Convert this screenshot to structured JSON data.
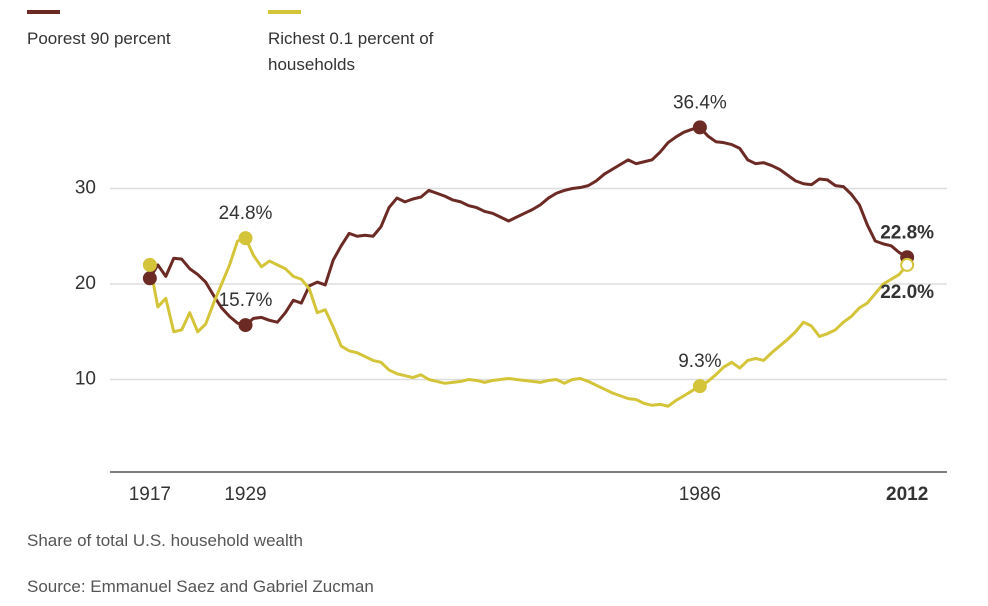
{
  "chart_data": {
    "type": "line",
    "axis_label": "Share of total U.S. household wealth",
    "source": "Source: Emmanuel Saez and Gabriel Zucman",
    "x": [
      1917,
      1918,
      1919,
      1920,
      1921,
      1922,
      1923,
      1924,
      1925,
      1926,
      1927,
      1928,
      1929,
      1930,
      1931,
      1932,
      1933,
      1934,
      1935,
      1936,
      1937,
      1938,
      1939,
      1940,
      1941,
      1942,
      1943,
      1944,
      1945,
      1946,
      1947,
      1948,
      1949,
      1950,
      1951,
      1952,
      1953,
      1954,
      1955,
      1956,
      1957,
      1958,
      1959,
      1960,
      1961,
      1962,
      1963,
      1964,
      1965,
      1966,
      1967,
      1968,
      1969,
      1970,
      1971,
      1972,
      1973,
      1974,
      1975,
      1976,
      1977,
      1978,
      1979,
      1980,
      1981,
      1982,
      1983,
      1984,
      1985,
      1986,
      1987,
      1988,
      1989,
      1990,
      1991,
      1992,
      1993,
      1994,
      1995,
      1996,
      1997,
      1998,
      1999,
      2000,
      2001,
      2002,
      2003,
      2004,
      2005,
      2006,
      2007,
      2008,
      2009,
      2010,
      2011,
      2012
    ],
    "series": [
      {
        "name": "Poorest 90 percent",
        "color": "#6b2a24",
        "values": [
          20.6,
          22.0,
          20.8,
          22.7,
          22.6,
          21.6,
          21.0,
          20.2,
          18.8,
          17.5,
          16.6,
          15.9,
          15.7,
          16.4,
          16.5,
          16.2,
          16.0,
          17.0,
          18.3,
          18.0,
          19.8,
          20.2,
          19.9,
          22.5,
          24.0,
          25.3,
          25.0,
          25.1,
          25.0,
          26.0,
          28.0,
          29.0,
          28.6,
          28.9,
          29.1,
          29.8,
          29.5,
          29.2,
          28.8,
          28.6,
          28.2,
          28.0,
          27.6,
          27.4,
          27.0,
          26.6,
          27.0,
          27.4,
          27.8,
          28.3,
          29.0,
          29.5,
          29.8,
          30.0,
          30.1,
          30.3,
          30.8,
          31.5,
          32.0,
          32.5,
          33.0,
          32.6,
          32.8,
          33.0,
          33.8,
          34.8,
          35.4,
          35.9,
          36.2,
          36.4,
          35.5,
          34.9,
          34.8,
          34.6,
          34.2,
          33.0,
          32.6,
          32.7,
          32.4,
          32.0,
          31.4,
          30.8,
          30.5,
          30.4,
          31.0,
          30.9,
          30.3,
          30.2,
          29.4,
          28.3,
          26.2,
          24.5,
          24.2,
          24.0,
          23.3,
          22.8
        ],
        "value_labels": [
          null,
          null,
          null,
          null,
          null,
          null,
          null,
          null,
          null,
          null,
          null,
          null,
          "15.7%",
          null,
          null,
          null,
          null,
          null,
          null,
          null,
          null,
          null,
          null,
          null,
          null,
          null,
          null,
          null,
          null,
          null,
          null,
          null,
          null,
          null,
          null,
          null,
          null,
          null,
          null,
          null,
          null,
          null,
          null,
          null,
          null,
          null,
          null,
          null,
          null,
          null,
          null,
          null,
          null,
          null,
          null,
          null,
          null,
          null,
          null,
          null,
          null,
          null,
          null,
          null,
          null,
          null,
          null,
          null,
          null,
          "36.4%",
          null,
          null,
          null,
          null,
          null,
          null,
          null,
          null,
          null,
          null,
          null,
          null,
          null,
          null,
          null,
          null,
          null,
          null,
          null,
          null,
          null,
          null,
          null,
          null,
          null,
          "22.8%"
        ]
      },
      {
        "name": "Richest 0.1 percent of households",
        "color": "#d4c43a",
        "values": [
          22.0,
          17.6,
          18.5,
          15.0,
          15.2,
          17.0,
          15.0,
          15.8,
          18.0,
          20.0,
          22.0,
          24.5,
          24.8,
          23.0,
          21.8,
          22.4,
          22.0,
          21.6,
          20.8,
          20.5,
          19.5,
          17.0,
          17.3,
          15.5,
          13.5,
          13.0,
          12.8,
          12.4,
          12.0,
          11.8,
          11.0,
          10.6,
          10.4,
          10.2,
          10.5,
          10.0,
          9.8,
          9.6,
          9.7,
          9.8,
          10.0,
          9.9,
          9.7,
          9.9,
          10.0,
          10.1,
          10.0,
          9.9,
          9.8,
          9.7,
          9.9,
          10.0,
          9.6,
          10.0,
          10.1,
          9.8,
          9.4,
          9.0,
          8.6,
          8.3,
          8.0,
          7.9,
          7.5,
          7.3,
          7.4,
          7.2,
          7.8,
          8.3,
          8.8,
          9.3,
          9.8,
          10.5,
          11.3,
          11.8,
          11.2,
          12.0,
          12.2,
          12.0,
          12.8,
          13.5,
          14.2,
          15.0,
          16.0,
          15.6,
          14.5,
          14.8,
          15.2,
          16.0,
          16.6,
          17.5,
          18.0,
          19.0,
          20.0,
          20.5,
          21.0,
          22.0
        ],
        "value_labels": [
          null,
          null,
          null,
          null,
          null,
          null,
          null,
          null,
          null,
          null,
          null,
          null,
          "24.8%",
          null,
          null,
          null,
          null,
          null,
          null,
          null,
          null,
          null,
          null,
          null,
          null,
          null,
          null,
          null,
          null,
          null,
          null,
          null,
          null,
          null,
          null,
          null,
          null,
          null,
          null,
          null,
          null,
          null,
          null,
          null,
          null,
          null,
          null,
          null,
          null,
          null,
          null,
          null,
          null,
          null,
          null,
          null,
          null,
          null,
          null,
          null,
          null,
          null,
          null,
          null,
          null,
          null,
          null,
          null,
          null,
          "9.3%",
          null,
          null,
          null,
          null,
          null,
          null,
          null,
          null,
          null,
          null,
          null,
          null,
          null,
          null,
          null,
          null,
          null,
          null,
          null,
          null,
          null,
          null,
          null,
          null,
          null,
          "22.0%"
        ]
      }
    ],
    "xlim": [
      1912,
      2017
    ],
    "ylim": [
      0,
      40
    ],
    "xticks": [
      1917,
      1929,
      1986,
      2012
    ],
    "yticks": [
      10,
      20,
      30
    ],
    "grid": true
  }
}
